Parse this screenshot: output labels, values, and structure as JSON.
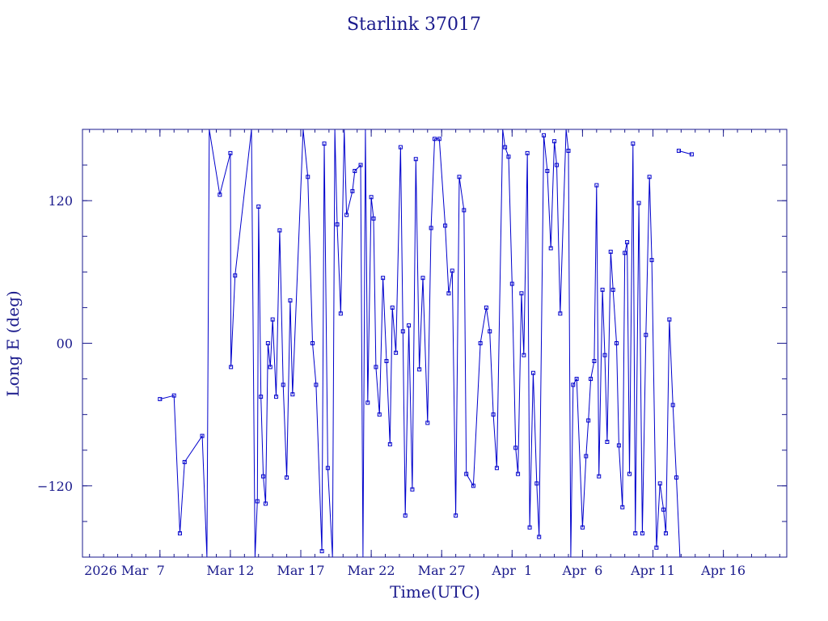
{
  "colors": {
    "ink": "#1a1a8c",
    "series": "#0000cc",
    "background": "#ffffff"
  },
  "chart_data": {
    "type": "line",
    "title": "Starlink 37017",
    "xlabel": "Time(UTC)",
    "ylabel": "Long E (deg)",
    "x_tick_labels": [
      {
        "x": "2026-03-07",
        "label": "2026 Mar  7"
      },
      {
        "x": "2026-03-12",
        "label": "Mar 12"
      },
      {
        "x": "2026-03-17",
        "label": "Mar 17"
      },
      {
        "x": "2026-03-22",
        "label": "Mar 22"
      },
      {
        "x": "2026-03-27",
        "label": "Mar 27"
      },
      {
        "x": "2026-04-01",
        "label": "Apr  1"
      },
      {
        "x": "2026-04-06",
        "label": "Apr  6"
      },
      {
        "x": "2026-04-11",
        "label": "Apr 11"
      },
      {
        "x": "2026-04-16",
        "label": "Apr 16"
      }
    ],
    "y_tick_labels": [
      {
        "y": 120,
        "label": "120"
      },
      {
        "y": 0,
        "label": "00"
      },
      {
        "y": -120,
        "label": "−120"
      }
    ],
    "xlim": [
      "2026-03-01T12:00",
      "2026-04-20T12:00"
    ],
    "ylim": [
      -180,
      180
    ],
    "grid": false,
    "legend": "none",
    "marker": "square",
    "series": [
      {
        "values": [
          [
            "2026-03-07T00:00",
            -47
          ],
          [
            "2026-03-08T00:00",
            -44
          ],
          [
            "2026-03-08T10:00",
            -160
          ],
          [
            "2026-03-08T18:00",
            -100
          ],
          [
            "2026-03-10T00:00",
            -78
          ],
          [
            "2026-03-10T08:00",
            -180
          ],
          [
            "2026-03-10T12:00",
            180
          ],
          [
            "2026-03-11T06:00",
            125
          ],
          [
            "2026-03-12T00:00",
            160
          ],
          [
            "2026-03-12T01:00",
            -20
          ],
          [
            "2026-03-12T08:00",
            57
          ],
          [
            "2026-03-13T12:00",
            180
          ],
          [
            "2026-03-13T18:00",
            -180
          ],
          [
            "2026-03-13T22:00",
            -133
          ],
          [
            "2026-03-14T00:00",
            115
          ],
          [
            "2026-03-14T04:00",
            -45
          ],
          [
            "2026-03-14T08:00",
            -112
          ],
          [
            "2026-03-14T12:00",
            -135
          ],
          [
            "2026-03-14T16:00",
            0
          ],
          [
            "2026-03-14T20:00",
            -20
          ],
          [
            "2026-03-15T00:00",
            20
          ],
          [
            "2026-03-15T06:00",
            -45
          ],
          [
            "2026-03-15T12:00",
            95
          ],
          [
            "2026-03-15T18:00",
            -35
          ],
          [
            "2026-03-16T00:00",
            -113
          ],
          [
            "2026-03-16T06:00",
            36
          ],
          [
            "2026-03-16T10:00",
            -43
          ],
          [
            "2026-03-17T04:00",
            180
          ],
          [
            "2026-03-17T12:00",
            140
          ],
          [
            "2026-03-17T20:00",
            0
          ],
          [
            "2026-03-18T02:00",
            -35
          ],
          [
            "2026-03-18T12:00",
            -175
          ],
          [
            "2026-03-18T16:00",
            168
          ],
          [
            "2026-03-18T22:00",
            -105
          ],
          [
            "2026-03-19T06:00",
            -180
          ],
          [
            "2026-03-19T10:00",
            180
          ],
          [
            "2026-03-19T14:00",
            100
          ],
          [
            "2026-03-19T20:00",
            25
          ],
          [
            "2026-03-20T02:00",
            180
          ],
          [
            "2026-03-20T06:00",
            108
          ],
          [
            "2026-03-20T16:00",
            128
          ],
          [
            "2026-03-20T20:00",
            145
          ],
          [
            "2026-03-21T06:00",
            150
          ],
          [
            "2026-03-21T10:00",
            -180
          ],
          [
            "2026-03-21T14:00",
            180
          ],
          [
            "2026-03-21T18:00",
            -50
          ],
          [
            "2026-03-22T00:00",
            123
          ],
          [
            "2026-03-22T04:00",
            105
          ],
          [
            "2026-03-22T08:00",
            -20
          ],
          [
            "2026-03-22T14:00",
            -60
          ],
          [
            "2026-03-22T20:00",
            55
          ],
          [
            "2026-03-23T02:00",
            -15
          ],
          [
            "2026-03-23T08:00",
            -85
          ],
          [
            "2026-03-23T12:00",
            30
          ],
          [
            "2026-03-23T18:00",
            -8
          ],
          [
            "2026-03-24T02:00",
            165
          ],
          [
            "2026-03-24T06:00",
            10
          ],
          [
            "2026-03-24T10:00",
            -145
          ],
          [
            "2026-03-24T16:00",
            15
          ],
          [
            "2026-03-24T22:00",
            -123
          ],
          [
            "2026-03-25T04:00",
            155
          ],
          [
            "2026-03-25T10:00",
            -22
          ],
          [
            "2026-03-25T16:00",
            55
          ],
          [
            "2026-03-26T00:00",
            -67
          ],
          [
            "2026-03-26T06:00",
            97
          ],
          [
            "2026-03-26T12:00",
            172
          ],
          [
            "2026-03-26T20:00",
            172
          ],
          [
            "2026-03-27T06:00",
            99
          ],
          [
            "2026-03-27T12:00",
            42
          ],
          [
            "2026-03-27T18:00",
            61
          ],
          [
            "2026-03-28T00:00",
            -145
          ],
          [
            "2026-03-28T06:00",
            140
          ],
          [
            "2026-03-28T14:00",
            112
          ],
          [
            "2026-03-28T18:00",
            -110
          ],
          [
            "2026-03-29T06:00",
            -120
          ],
          [
            "2026-03-29T18:00",
            0
          ],
          [
            "2026-03-30T04:00",
            30
          ],
          [
            "2026-03-30T10:00",
            10
          ],
          [
            "2026-03-30T16:00",
            -60
          ],
          [
            "2026-03-30T22:00",
            -105
          ],
          [
            "2026-03-31T08:00",
            180
          ],
          [
            "2026-03-31T12:00",
            165
          ],
          [
            "2026-03-31T18:00",
            157
          ],
          [
            "2026-04-01T00:00",
            50
          ],
          [
            "2026-04-01T06:00",
            -88
          ],
          [
            "2026-04-01T10:00",
            -110
          ],
          [
            "2026-04-01T16:00",
            42
          ],
          [
            "2026-04-01T20:00",
            -10
          ],
          [
            "2026-04-02T02:00",
            160
          ],
          [
            "2026-04-02T06:00",
            -155
          ],
          [
            "2026-04-02T12:00",
            -25
          ],
          [
            "2026-04-02T18:00",
            -118
          ],
          [
            "2026-04-02T22:00",
            -163
          ],
          [
            "2026-04-03T06:00",
            175
          ],
          [
            "2026-04-03T12:00",
            145
          ],
          [
            "2026-04-03T18:00",
            80
          ],
          [
            "2026-04-04T00:00",
            170
          ],
          [
            "2026-04-04T04:00",
            150
          ],
          [
            "2026-04-04T10:00",
            25
          ],
          [
            "2026-04-04T20:00",
            180
          ],
          [
            "2026-04-05T00:00",
            162
          ],
          [
            "2026-04-05T04:00",
            -180
          ],
          [
            "2026-04-05T08:00",
            -35
          ],
          [
            "2026-04-05T14:00",
            -30
          ],
          [
            "2026-04-06T00:00",
            -155
          ],
          [
            "2026-04-06T06:00",
            -95
          ],
          [
            "2026-04-06T10:00",
            -65
          ],
          [
            "2026-04-06T14:00",
            -30
          ],
          [
            "2026-04-06T20:00",
            -15
          ],
          [
            "2026-04-07T00:00",
            133
          ],
          [
            "2026-04-07T04:00",
            -112
          ],
          [
            "2026-04-07T10:00",
            45
          ],
          [
            "2026-04-07T14:00",
            -10
          ],
          [
            "2026-04-07T18:00",
            -83
          ],
          [
            "2026-04-08T00:00",
            77
          ],
          [
            "2026-04-08T04:00",
            45
          ],
          [
            "2026-04-08T10:00",
            0
          ],
          [
            "2026-04-08T14:00",
            -86
          ],
          [
            "2026-04-08T20:00",
            -138
          ],
          [
            "2026-04-09T00:00",
            76
          ],
          [
            "2026-04-09T04:00",
            85
          ],
          [
            "2026-04-09T08:00",
            -110
          ],
          [
            "2026-04-09T14:00",
            168
          ],
          [
            "2026-04-09T18:00",
            -160
          ],
          [
            "2026-04-10T00:00",
            118
          ],
          [
            "2026-04-10T06:00",
            -160
          ],
          [
            "2026-04-10T12:00",
            7
          ],
          [
            "2026-04-10T18:00",
            140
          ],
          [
            "2026-04-10T22:00",
            70
          ],
          [
            "2026-04-11T06:00",
            -172
          ],
          [
            "2026-04-11T12:00",
            -118
          ],
          [
            "2026-04-11T18:00",
            -140
          ],
          [
            "2026-04-11T22:00",
            -160
          ],
          [
            "2026-04-12T04:00",
            20
          ],
          [
            "2026-04-12T10:00",
            -52
          ],
          [
            "2026-04-12T16:00",
            -113
          ],
          [
            "2026-04-12T22:00",
            -180
          ]
        ]
      },
      {
        "values": [
          [
            "2026-04-12T20:00",
            162
          ],
          [
            "2026-04-13T18:00",
            159
          ]
        ]
      }
    ]
  }
}
